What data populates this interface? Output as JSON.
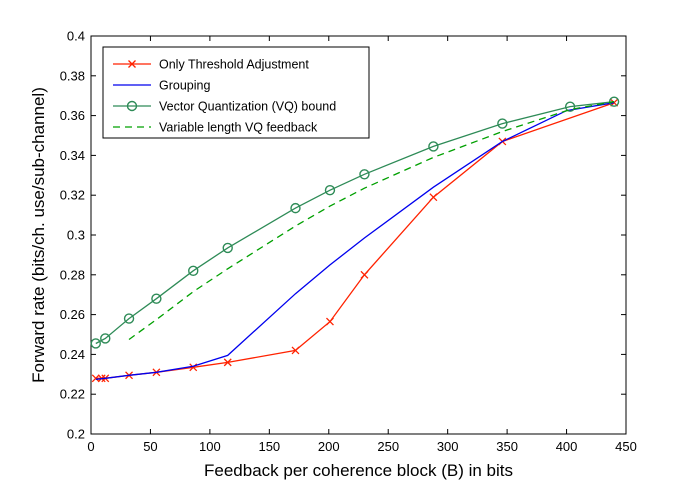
{
  "chart_data": {
    "type": "line",
    "title": "",
    "xlabel": "Feedback per coherence block (B) in bits",
    "ylabel": "Forward rate (bits/ch. use/sub-channel)",
    "xlim": [
      0,
      450
    ],
    "ylim": [
      0.2,
      0.4
    ],
    "xticks": [
      0,
      50,
      100,
      150,
      200,
      250,
      300,
      350,
      400,
      450
    ],
    "yticks": [
      0.2,
      0.22,
      0.24,
      0.26,
      0.28,
      0.3,
      0.32,
      0.34,
      0.36,
      0.38,
      0.4
    ],
    "xtick_labels": [
      "0",
      "50",
      "100",
      "150",
      "200",
      "250",
      "300",
      "350",
      "400",
      "450"
    ],
    "ytick_labels": [
      "0.2",
      "0.22",
      "0.24",
      "0.26",
      "0.28",
      "0.3",
      "0.32",
      "0.34",
      "0.36",
      "0.38",
      "0.4"
    ],
    "grid": false,
    "legend_position": "top-left",
    "series": [
      {
        "name": "Only Threshold Adjustment",
        "color": "#ff2200",
        "line_style": "solid",
        "marker": "x",
        "x": [
          4,
          9,
          12,
          32,
          55,
          86,
          115,
          172,
          201,
          230,
          288,
          346,
          440
        ],
        "y": [
          0.228,
          0.228,
          0.228,
          0.2295,
          0.231,
          0.2335,
          0.236,
          0.242,
          0.2565,
          0.28,
          0.319,
          0.347,
          0.3665
        ]
      },
      {
        "name": "Grouping",
        "color": "#0000ee",
        "line_style": "solid",
        "marker": "none",
        "x": [
          4,
          12,
          32,
          55,
          86,
          115,
          172,
          201,
          230,
          288,
          346,
          400,
          440
        ],
        "y": [
          0.2275,
          0.228,
          0.2295,
          0.231,
          0.234,
          0.2395,
          0.2705,
          0.285,
          0.2985,
          0.324,
          0.347,
          0.3625,
          0.3665
        ]
      },
      {
        "name": "Vector Quantization (VQ) bound",
        "color": "#2e8b57",
        "line_style": "solid",
        "marker": "o",
        "x": [
          4,
          12,
          32,
          55,
          86,
          115,
          172,
          201,
          230,
          288,
          346,
          403,
          440
        ],
        "y": [
          0.2455,
          0.248,
          0.258,
          0.268,
          0.282,
          0.2935,
          0.3135,
          0.3225,
          0.3305,
          0.3445,
          0.356,
          0.3645,
          0.367
        ]
      },
      {
        "name": "Variable length VQ feedback",
        "color": "#00a000",
        "line_style": "dashed",
        "marker": "none",
        "x": [
          32,
          55,
          86,
          115,
          172,
          201,
          230,
          288,
          346,
          403,
          440
        ],
        "y": [
          0.2475,
          0.2575,
          0.2715,
          0.283,
          0.3045,
          0.3145,
          0.3235,
          0.339,
          0.352,
          0.363,
          0.367
        ]
      }
    ]
  }
}
